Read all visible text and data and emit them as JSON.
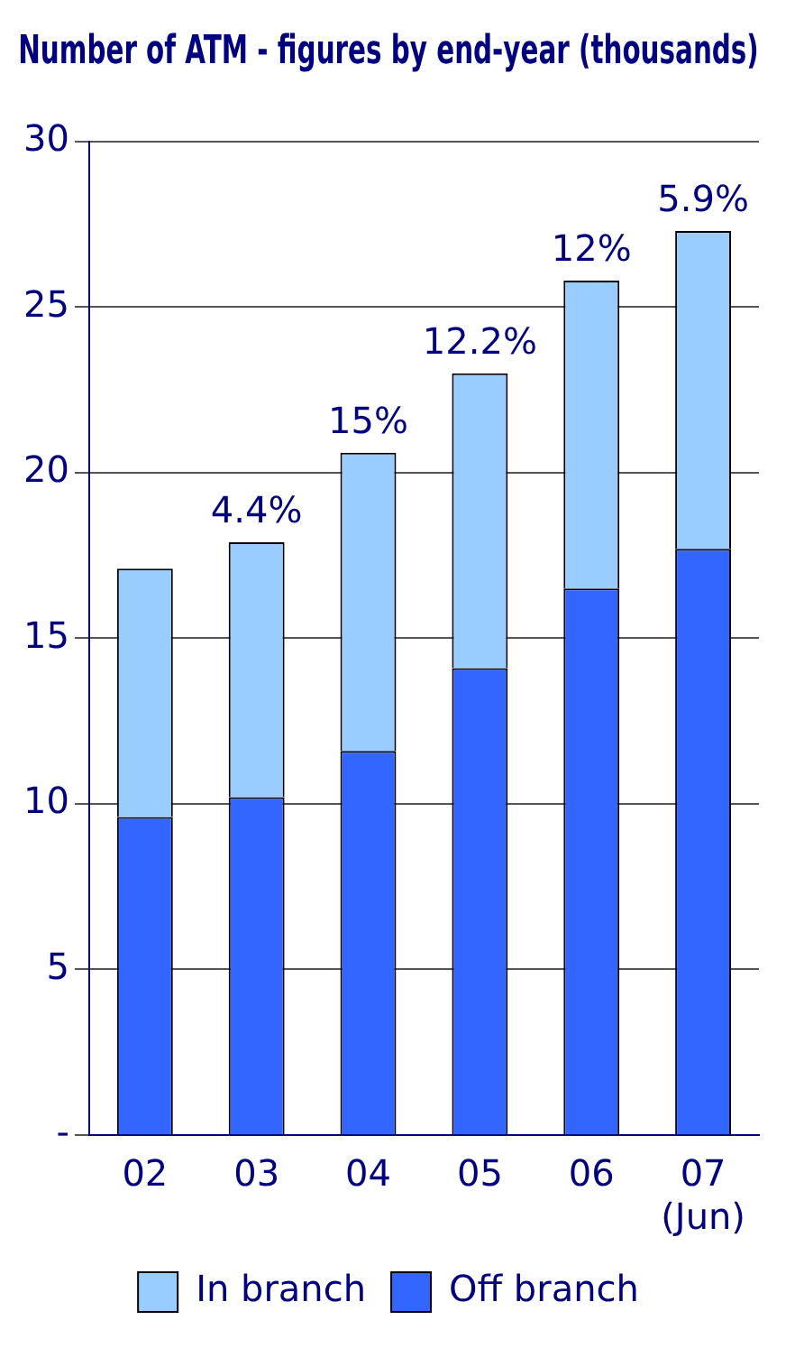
{
  "chart_data": {
    "type": "bar",
    "title": "Number of ATM - figures by end-year (thousands)",
    "categories": [
      "02",
      "03",
      "04",
      "05",
      "06",
      "07 (Jun)"
    ],
    "stacked": true,
    "series": [
      {
        "name": "Off branch",
        "color": "#3366ff",
        "values": [
          9.6,
          10.2,
          11.6,
          14.1,
          16.5,
          17.7
        ]
      },
      {
        "name": "In branch",
        "color": "#99ccff",
        "values": [
          7.5,
          7.7,
          9.0,
          8.9,
          9.3,
          9.6
        ]
      }
    ],
    "ylim": [
      0,
      30
    ],
    "yticks": [
      {
        "value": 0,
        "label": "-"
      },
      5,
      10,
      15,
      20,
      25,
      30
    ],
    "grid": "y",
    "legend": "bottom",
    "annotations": [
      {
        "text": "4.4%",
        "x": "03",
        "y": 17.9
      },
      {
        "text": "15%",
        "x": "04",
        "y": 20.6
      },
      {
        "text": "12.2%",
        "x": "05",
        "y": 23.0
      },
      {
        "text": "12%",
        "x": "06",
        "y": 25.8
      },
      {
        "text": "5.9%",
        "x": "07 (Jun)",
        "y": 27.3
      }
    ]
  }
}
